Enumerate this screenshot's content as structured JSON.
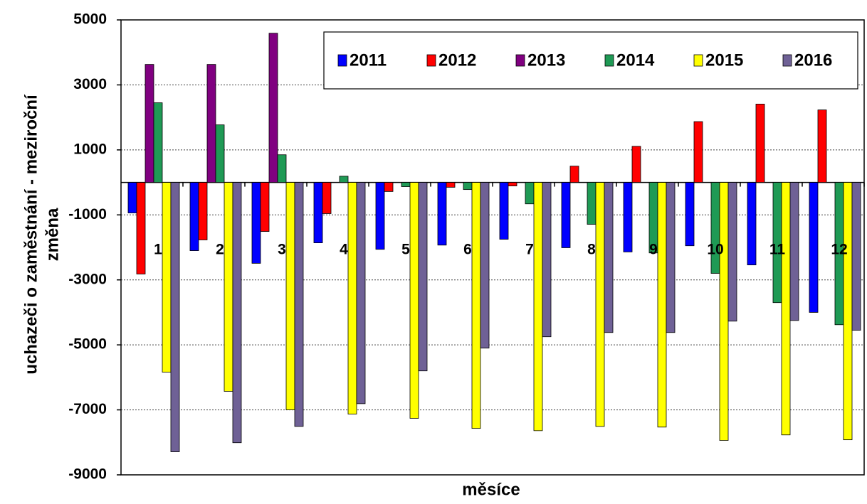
{
  "chart_data": {
    "type": "bar",
    "x_label": "měsíce",
    "y_label": [
      "uchazeči o zaměstnání - meziroční",
      "změna"
    ],
    "categories": [
      "1",
      "2",
      "3",
      "4",
      "5",
      "6",
      "7",
      "8",
      "9",
      "10",
      "11",
      "12"
    ],
    "series": [
      {
        "name": "2011",
        "color": "#0000ff",
        "values": [
          -940,
          -2100,
          -2490,
          -1860,
          -2060,
          -1930,
          -1750,
          -2010,
          -2140,
          -1950,
          -2540,
          -4000
        ]
      },
      {
        "name": "2012",
        "color": "#ff0000",
        "values": [
          -2820,
          -1770,
          -1510,
          -960,
          -280,
          -150,
          -110,
          500,
          1110,
          1870,
          2410,
          2230
        ]
      },
      {
        "name": "2013",
        "color": "#800080",
        "values": [
          3630,
          3630,
          4590,
          null,
          null,
          null,
          null,
          null,
          null,
          null,
          null,
          null
        ]
      },
      {
        "name": "2014",
        "color": "#1f9a55",
        "values": [
          2450,
          1770,
          850,
          190,
          -130,
          -220,
          -660,
          -1290,
          -2170,
          -2800,
          -3700,
          -4380
        ]
      },
      {
        "name": "2015",
        "color": "#ffff00",
        "values": [
          -5840,
          -6430,
          -7000,
          -7130,
          -7260,
          -7570,
          -7640,
          -7510,
          -7530,
          -7940,
          -7770,
          -7920
        ]
      },
      {
        "name": "2016",
        "color": "#6f6196",
        "values": [
          -8290,
          -8010,
          -7510,
          -6810,
          -5800,
          -5100,
          -4750,
          -4620,
          -4620,
          -4270,
          -4250,
          -4550
        ]
      }
    ],
    "ylim": [
      -9000,
      5000
    ],
    "yticks": [
      -9000,
      -7000,
      -5000,
      -3000,
      -1000,
      1000,
      3000,
      5000
    ],
    "grid": true
  }
}
